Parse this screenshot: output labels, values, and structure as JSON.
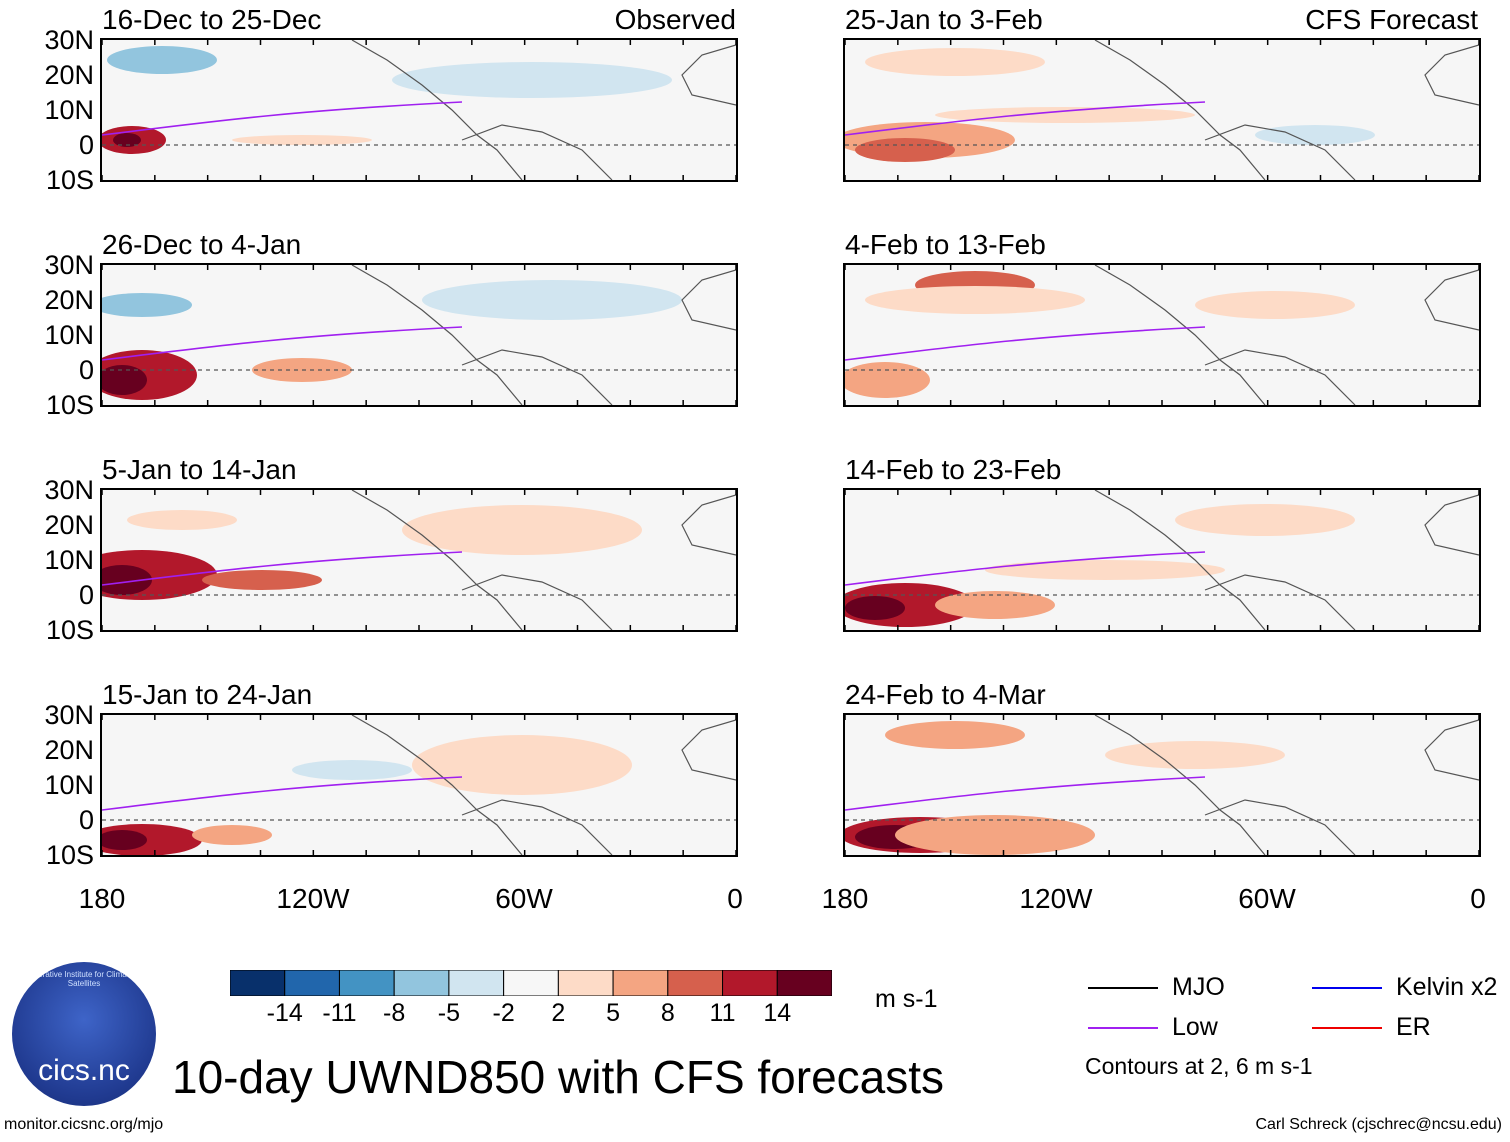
{
  "figure": {
    "title": "10-day UWND850 with CFS forecasts",
    "website": "monitor.cicsnc.org/mjo",
    "credit": "Carl Schreck (cjschrec@ncsu.edu)",
    "logo": {
      "text": "cics.nc",
      "arc_text": "Cooperative Institute for Climate and Satellites"
    }
  },
  "columns": {
    "left_tag": "Observed",
    "right_tag": "CFS Forecast"
  },
  "axes": {
    "lat_ticks": [
      "30N",
      "20N",
      "10N",
      "0",
      "10S"
    ],
    "lon_ticks": [
      "180",
      "120W",
      "60W",
      "0"
    ]
  },
  "panels": [
    {
      "period": "16-Dec to 25-Dec",
      "source": "Observed"
    },
    {
      "period": "26-Dec to 4-Jan",
      "source": "Observed"
    },
    {
      "period": "5-Jan to 14-Jan",
      "source": "Observed"
    },
    {
      "period": "15-Jan to 24-Jan",
      "source": "Observed"
    },
    {
      "period": "25-Jan to 3-Feb",
      "source": "CFS Forecast"
    },
    {
      "period": "4-Feb to 13-Feb",
      "source": "CFS Forecast"
    },
    {
      "period": "14-Feb to 23-Feb",
      "source": "CFS Forecast"
    },
    {
      "period": "24-Feb to 4-Mar",
      "source": "CFS Forecast"
    }
  ],
  "colorbar": {
    "units": "m s-1",
    "labels": [
      "-14",
      "-11",
      "-8",
      "-5",
      "-2",
      "2",
      "5",
      "8",
      "11",
      "14"
    ],
    "colors": [
      "#08306b",
      "#2166ac",
      "#4393c3",
      "#92c5de",
      "#d1e5f0",
      "#f7f7f7",
      "#fddbc7",
      "#f4a582",
      "#d6604d",
      "#b2182b",
      "#67001f"
    ]
  },
  "legend": {
    "items": [
      {
        "label": "MJO",
        "color": "#000000"
      },
      {
        "label": "Kelvin x2",
        "color": "#0000ee"
      },
      {
        "label": "Low",
        "color": "#a020f0"
      },
      {
        "label": "ER",
        "color": "#ee0000"
      }
    ],
    "note": "Contours at 2, 6 m s-1"
  }
}
